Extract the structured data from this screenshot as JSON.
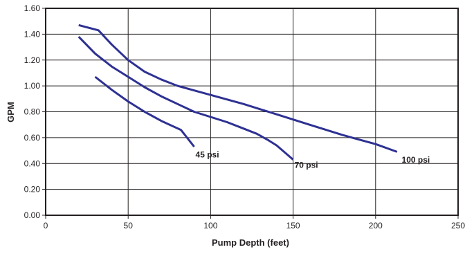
{
  "chart_data": {
    "type": "line",
    "xlabel": "Pump Depth (feet)",
    "ylabel": "GPM",
    "xlim": [
      0,
      250
    ],
    "ylim": [
      0,
      1.6
    ],
    "x_ticks": [
      "0",
      "50",
      "100",
      "150",
      "200",
      "250"
    ],
    "y_ticks": [
      "0.00",
      "0.20",
      "0.40",
      "0.60",
      "0.80",
      "1.00",
      "1.20",
      "1.40",
      "1.60"
    ],
    "grid": true,
    "series_color": "#2e3192",
    "series": [
      {
        "name": "45 psi",
        "points": [
          [
            30,
            1.07
          ],
          [
            40,
            0.97
          ],
          [
            50,
            0.88
          ],
          [
            60,
            0.8
          ],
          [
            70,
            0.73
          ],
          [
            82,
            0.66
          ],
          [
            90,
            0.53
          ]
        ],
        "label_at": [
          90,
          0.5
        ]
      },
      {
        "name": "70 psi",
        "points": [
          [
            20,
            1.38
          ],
          [
            30,
            1.25
          ],
          [
            40,
            1.15
          ],
          [
            50,
            1.07
          ],
          [
            60,
            0.99
          ],
          [
            70,
            0.92
          ],
          [
            80,
            0.86
          ],
          [
            90,
            0.8
          ],
          [
            100,
            0.76
          ],
          [
            110,
            0.72
          ],
          [
            120,
            0.67
          ],
          [
            128,
            0.63
          ],
          [
            135,
            0.58
          ],
          [
            140,
            0.54
          ],
          [
            150,
            0.43
          ]
        ],
        "label_at": [
          150,
          0.42
        ]
      },
      {
        "name": "100 psi",
        "points": [
          [
            20,
            1.47
          ],
          [
            32,
            1.43
          ],
          [
            40,
            1.32
          ],
          [
            50,
            1.2
          ],
          [
            60,
            1.11
          ],
          [
            70,
            1.05
          ],
          [
            80,
            1.0
          ],
          [
            100,
            0.93
          ],
          [
            120,
            0.86
          ],
          [
            140,
            0.78
          ],
          [
            160,
            0.7
          ],
          [
            180,
            0.62
          ],
          [
            200,
            0.55
          ],
          [
            213,
            0.49
          ]
        ],
        "label_at": [
          215,
          0.46
        ]
      }
    ]
  }
}
